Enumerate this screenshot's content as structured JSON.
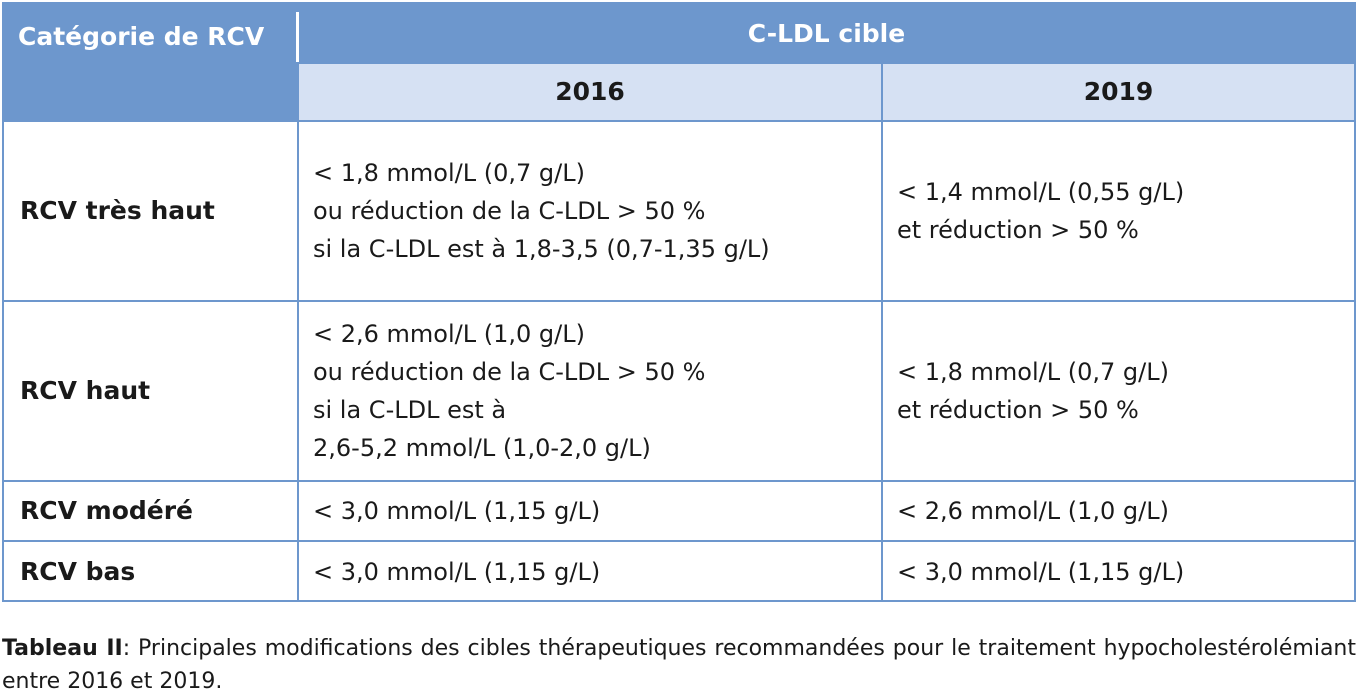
{
  "table": {
    "header": {
      "category": "Catégorie de RCV",
      "target": "C-LDL cible",
      "years": [
        "2016",
        "2019"
      ]
    },
    "rows": [
      {
        "label": "RCV très haut",
        "y2016": [
          "< 1,8 mmol/L (0,7 g/L)",
          "ou réduction de la C-LDL > 50 %",
          "si la C-LDL est à 1,8-3,5 (0,7-1,35 g/L)"
        ],
        "y2019": [
          "< 1,4 mmol/L (0,55 g/L)",
          "et réduction > 50 %"
        ]
      },
      {
        "label": "RCV haut",
        "y2016": [
          "< 2,6 mmol/L (1,0 g/L)",
          "ou réduction de la C-LDL > 50 %",
          "si la C-LDL est à",
          "2,6-5,2 mmol/L (1,0-2,0 g/L)"
        ],
        "y2019": [
          "< 1,8 mmol/L (0,7 g/L)",
          "et réduction > 50 %"
        ]
      },
      {
        "label": "RCV modéré",
        "y2016": [
          "< 3,0 mmol/L (1,15 g/L)"
        ],
        "y2019": [
          "< 2,6 mmol/L (1,0 g/L)"
        ]
      },
      {
        "label": "RCV bas",
        "y2016": [
          "< 3,0 mmol/L (1,15 g/L)"
        ],
        "y2019": [
          "< 3,0 mmol/L (1,15 g/L)"
        ]
      }
    ]
  },
  "caption": {
    "label": "Tableau II",
    "text": ": Principales modifications des cibles thérapeutiques recommandées pour le traitement hypocholestérolémiant entre 2016 et 2019."
  },
  "colors": {
    "header_bg": "#6d97cd",
    "subheader_bg": "#d6e1f3",
    "border": "#6d97cd"
  }
}
